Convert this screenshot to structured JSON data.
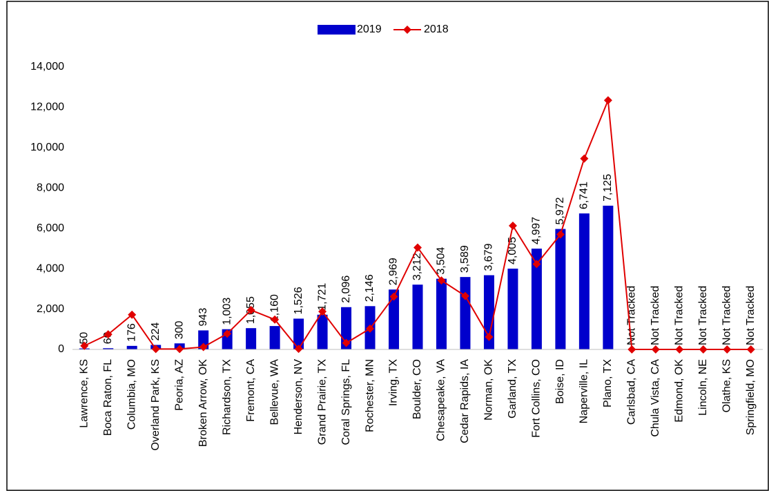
{
  "chart_data": {
    "type": "bar_line",
    "categories": [
      "Lawrence, KS",
      "Boca Raton, FL",
      "Columbia, MO",
      "Overland Park, KS",
      "Peoria, AZ",
      "Broken Arrow, OK",
      "Richardson, TX",
      "Fremont, CA",
      "Bellevue, WA",
      "Henderson, NV",
      "Grand Prairie, TX",
      "Coral Springs, FL",
      "Rochester, MN",
      "Irving, TX",
      "Boulder, CO",
      "Chesapeake, VA",
      "Cedar Rapids, IA",
      "Norman, OK",
      "Garland, TX",
      "Fort Collins, CO",
      "Boise, ID",
      "Naperville, IL",
      "Plano, TX",
      "Carlsbad, CA",
      "Chula Vista, CA",
      "Edmond, OK",
      "Lincoln, NE",
      "Olathe, KS",
      "Springfield, MO"
    ],
    "series": [
      {
        "name": "2019",
        "type": "bar",
        "color": "#0000cc",
        "values": [
          50,
          60,
          176,
          224,
          300,
          943,
          1003,
          1055,
          1160,
          1526,
          1721,
          2096,
          2146,
          2969,
          3212,
          3504,
          3589,
          3679,
          4005,
          4997,
          5972,
          6741,
          7125,
          null,
          null,
          null,
          null,
          null,
          null
        ],
        "value_labels": [
          "50",
          "60",
          "176",
          "224",
          "300",
          "943",
          "1,003",
          "1,055",
          "1,160",
          "1,526",
          "1,721",
          "2,096",
          "2,146",
          "2,969",
          "3,212",
          "3,504",
          "3,589",
          "3,679",
          "4,005",
          "4,997",
          "5,972",
          "6,741",
          "7,125",
          "Not Tracked",
          "Not Tracked",
          "Not Tracked",
          "Not Tracked",
          "Not Tracked",
          "Not Tracked"
        ]
      },
      {
        "name": "2018",
        "type": "line",
        "color": "#e00000",
        "values": [
          180,
          750,
          1720,
          20,
          20,
          120,
          780,
          1950,
          1480,
          30,
          1880,
          320,
          1030,
          2620,
          5050,
          3420,
          2650,
          620,
          6130,
          4230,
          5700,
          9460,
          12350,
          0,
          0,
          0,
          0,
          0,
          0
        ]
      }
    ],
    "ylim": [
      0,
      14000
    ],
    "yticks": [
      0,
      {
        "value": 2000,
        "label": "2,000"
      },
      {
        "value": 4000,
        "label": "4,000"
      },
      {
        "value": 6000,
        "label": "6,000"
      },
      {
        "value": 8000,
        "label": "8,000"
      },
      {
        "value": 10000,
        "label": "10,000"
      },
      {
        "value": 12000,
        "label": "12,000"
      },
      {
        "value": 14000,
        "label": "14,000"
      }
    ],
    "grid": false,
    "legend": "top"
  }
}
